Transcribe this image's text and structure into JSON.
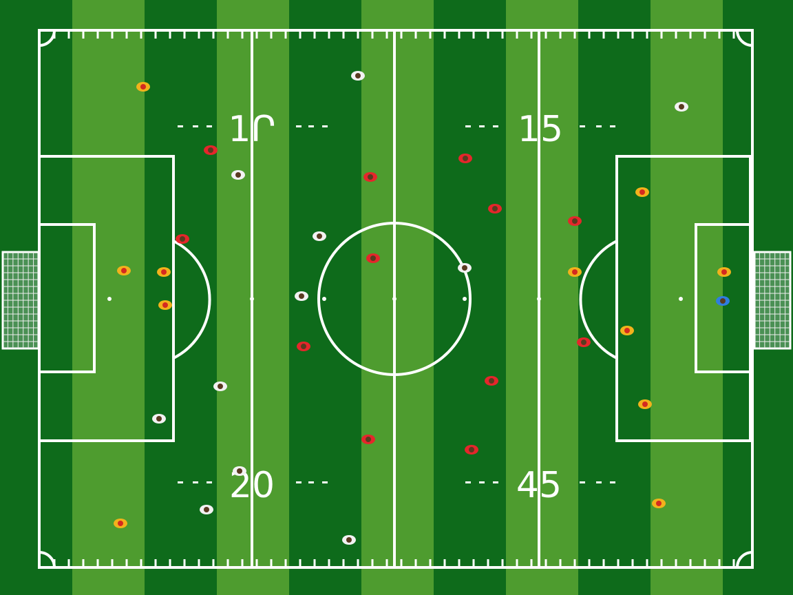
{
  "field_markings": {
    "top_left": "1Ր",
    "top_right": "15",
    "bottom_left": "20",
    "bottom_right": "45"
  },
  "colors": {
    "grass_dark": "#0e6b1b",
    "grass_light": "#4e9c2f",
    "lines": "#ffffff",
    "team_red": "#e5262b",
    "team_yellow": "#f2b21c",
    "team_white": "#f2f2f2",
    "goalkeeper_blue": "#2f7de0"
  }
}
